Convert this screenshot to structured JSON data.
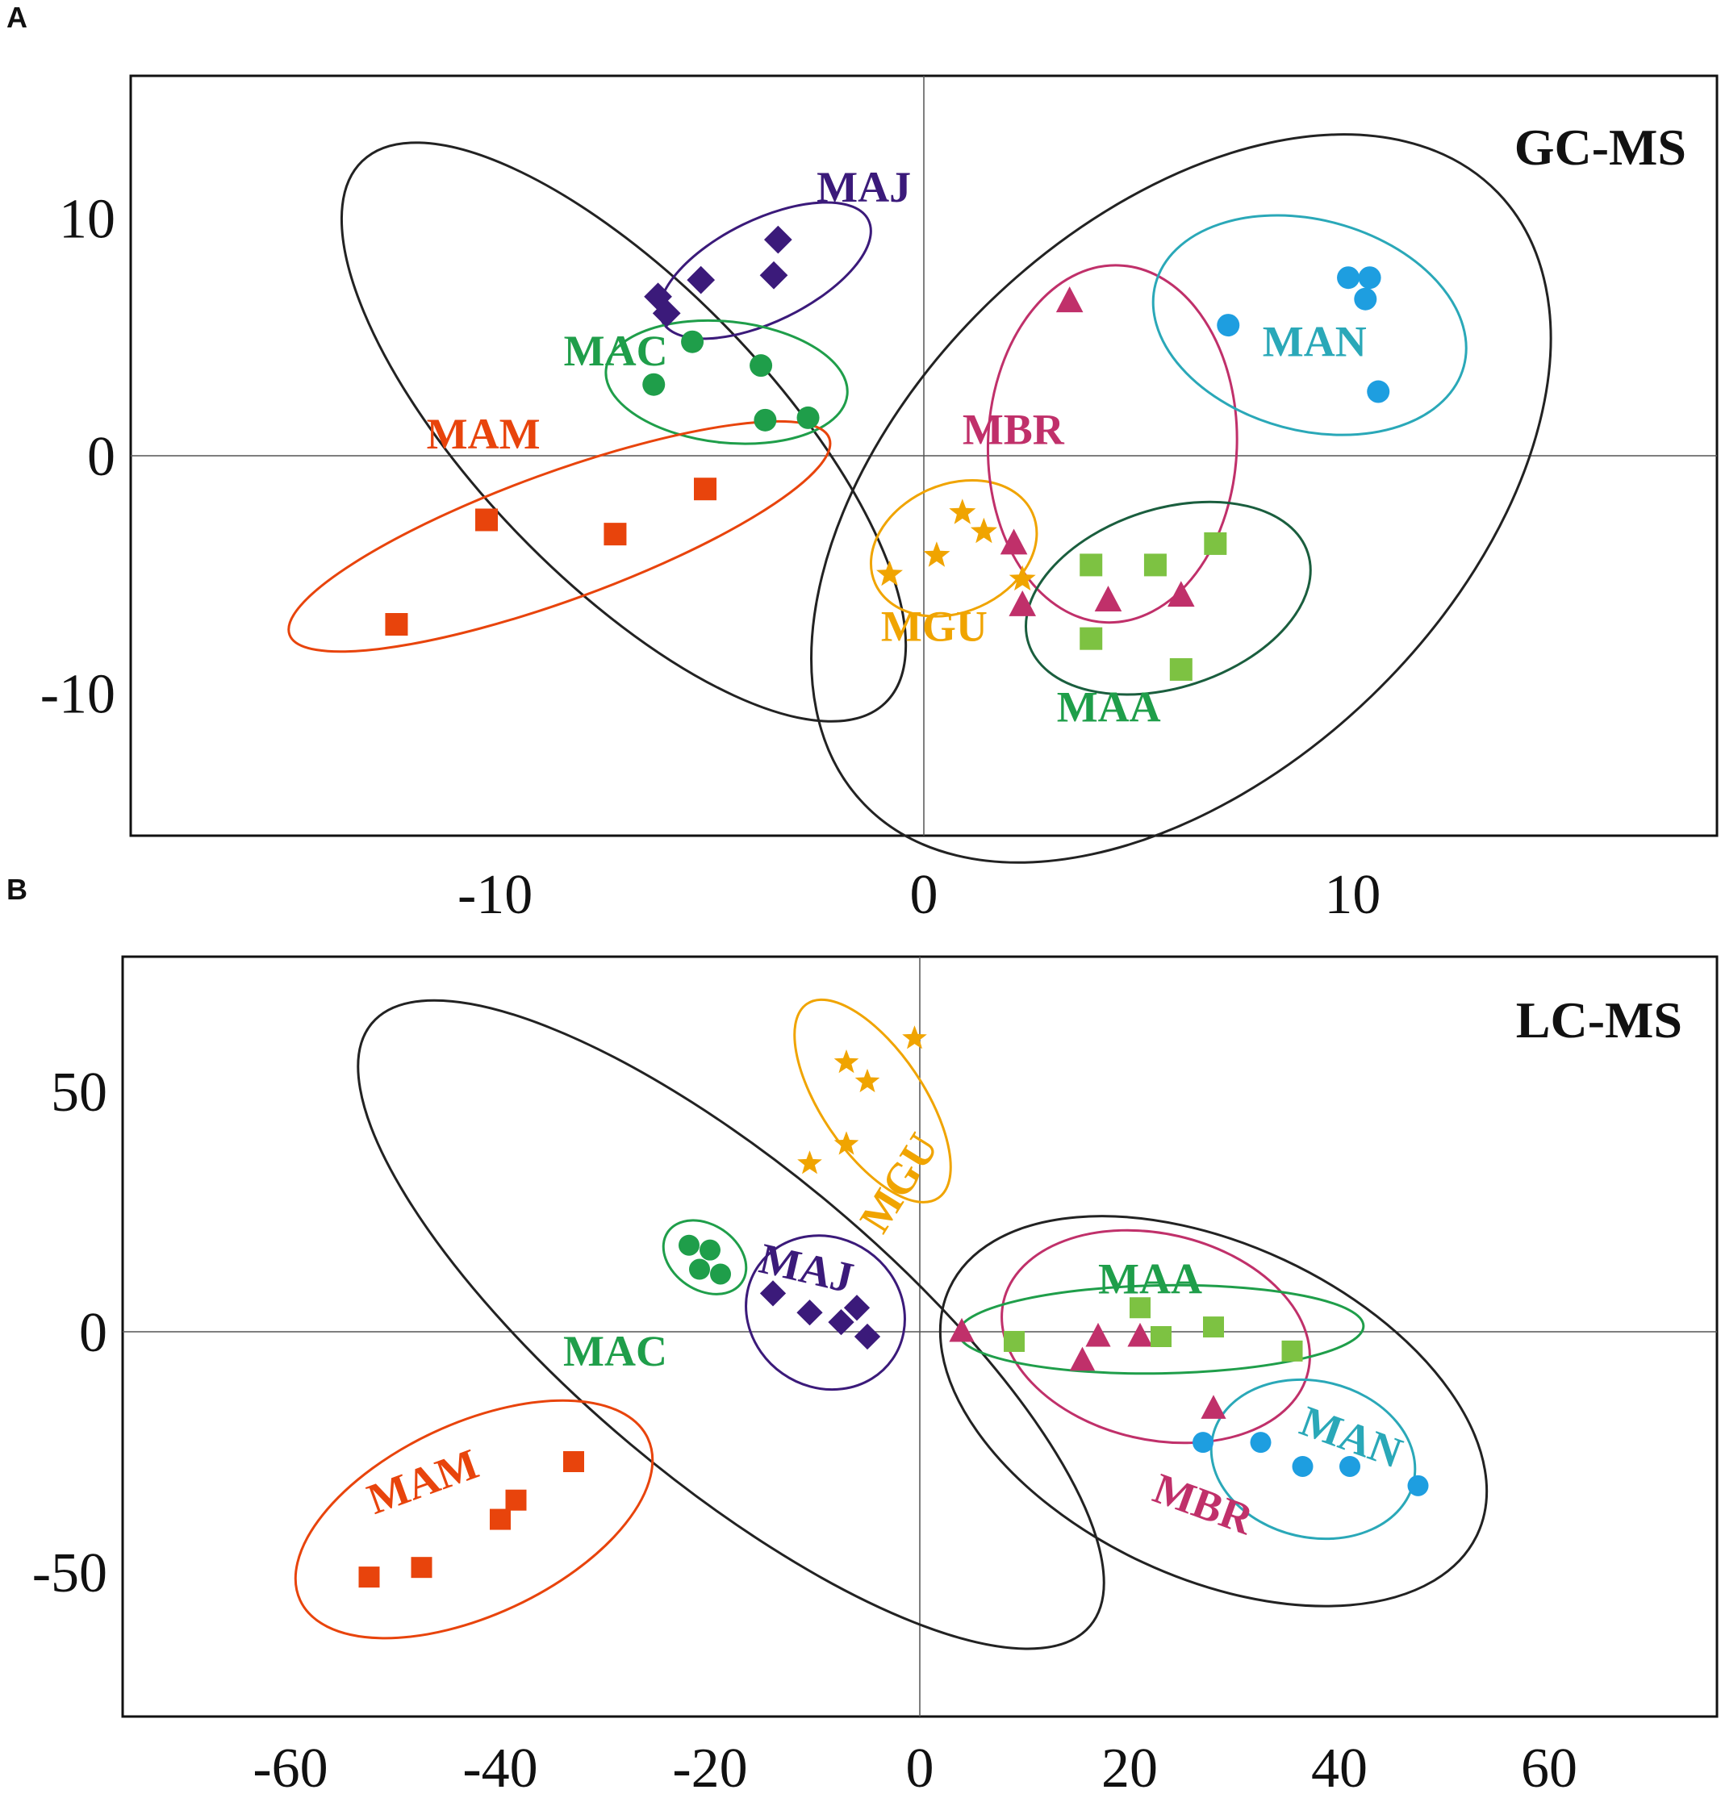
{
  "chart_data": [
    {
      "type": "scatter",
      "panel": "A",
      "title": "GC-MS",
      "xlabel": "",
      "ylabel": "",
      "xlim": [
        -18.5,
        18.5
      ],
      "ylim": [
        -16,
        16
      ],
      "xticks": [
        -10,
        0,
        10
      ],
      "yticks": [
        10,
        0,
        -10
      ],
      "xtick_labels": [
        "-10",
        "0",
        "10"
      ],
      "ytick_labels": [
        "10",
        "0",
        "-10"
      ],
      "series": [
        {
          "name": "MAJ",
          "color": "#3b1a7a",
          "marker": "diamond",
          "x": [
            -6.2,
            -5.2,
            -3.5,
            -3.4,
            -6.0
          ],
          "y": [
            6.7,
            7.4,
            7.6,
            9.1,
            6.0
          ]
        },
        {
          "name": "MAC",
          "color": "#1f9e4a",
          "marker": "circle",
          "x": [
            -5.4,
            -3.8,
            -6.3,
            -3.7,
            -2.7
          ],
          "y": [
            4.8,
            3.8,
            3.0,
            1.5,
            1.6
          ]
        },
        {
          "name": "MAM",
          "color": "#e8440c",
          "marker": "square",
          "x": [
            -12.3,
            -10.2,
            -7.2,
            -5.1
          ],
          "y": [
            -7.1,
            -2.7,
            -3.3,
            -1.4
          ]
        },
        {
          "name": "MGU",
          "color": "#f0a400",
          "marker": "star",
          "x": [
            -0.8,
            0.3,
            0.9,
            1.4,
            2.3
          ],
          "y": [
            -5.0,
            -4.2,
            -2.4,
            -3.2,
            -5.2
          ]
        },
        {
          "name": "MBR",
          "color": "#c0306a",
          "marker": "triangle",
          "x": [
            3.4,
            2.1,
            2.3,
            4.3,
            6.0
          ],
          "y": [
            6.5,
            -3.7,
            -6.3,
            -6.1,
            -5.9
          ]
        },
        {
          "name": "MAA",
          "color": "#7dc242",
          "marker": "square",
          "x": [
            3.9,
            5.4,
            6.8,
            3.9,
            6.0
          ],
          "y": [
            -4.6,
            -4.6,
            -3.7,
            -7.7,
            -9.0
          ]
        },
        {
          "name": "MAN",
          "color": "#1e9ee0",
          "marker": "circle",
          "x": [
            7.1,
            9.9,
            10.4,
            10.3,
            10.6
          ],
          "y": [
            5.5,
            7.5,
            7.5,
            6.6,
            2.7
          ]
        }
      ],
      "annotations": [
        "MAJ",
        "MAC",
        "MAM",
        "MGU",
        "MBR",
        "MAA",
        "MAN"
      ]
    },
    {
      "type": "scatter",
      "panel": "B",
      "title": "LC-MS",
      "xlabel": "",
      "ylabel": "",
      "xlim": [
        -76,
        76
      ],
      "ylim": [
        -80,
        78
      ],
      "xticks": [
        -60,
        -40,
        -20,
        0,
        20,
        40,
        60
      ],
      "yticks": [
        50,
        0,
        -50
      ],
      "xtick_labels": [
        "-60",
        "-40",
        "-20",
        "0",
        "20",
        "40",
        "60"
      ],
      "ytick_labels": [
        "50",
        "0",
        "-50"
      ],
      "series": [
        {
          "name": "MGU",
          "color": "#f0a400",
          "marker": "star",
          "x": [
            -0.5,
            -7.0,
            -5.0,
            -7.0,
            -10.5
          ],
          "y": [
            61.0,
            56.0,
            52.0,
            39.0,
            35.0
          ]
        },
        {
          "name": "MAC",
          "color": "#1f9e4a",
          "marker": "circle",
          "x": [
            -22.0,
            -20.0,
            -21.0,
            -19.0
          ],
          "y": [
            18.0,
            17.0,
            13.0,
            12.0
          ]
        },
        {
          "name": "MAJ",
          "color": "#3b1a7a",
          "marker": "diamond",
          "x": [
            -14.0,
            -10.5,
            -6.0,
            -7.5,
            -5.0
          ],
          "y": [
            8.0,
            4.0,
            5.0,
            2.0,
            -1.0
          ]
        },
        {
          "name": "MAM",
          "color": "#e8440c",
          "marker": "square",
          "x": [
            -33.0,
            -38.5,
            -40.0,
            -47.5,
            -52.5
          ],
          "y": [
            -27.0,
            -35.0,
            -39.0,
            -49.0,
            -51.0
          ]
        },
        {
          "name": "MBR",
          "color": "#c0306a",
          "marker": "triangle",
          "x": [
            4.0,
            15.5,
            17.0,
            21.0,
            28.0
          ],
          "y": [
            0.0,
            -6.0,
            -1.0,
            -1.0,
            -16.0
          ]
        },
        {
          "name": "MAA",
          "color": "#7dc242",
          "marker": "square",
          "x": [
            9.0,
            21.0,
            23.0,
            28.0,
            35.5
          ],
          "y": [
            -2.0,
            5.0,
            -1.0,
            1.0,
            -4.0
          ]
        },
        {
          "name": "MAN",
          "color": "#1e9ee0",
          "marker": "circle",
          "x": [
            27.0,
            32.5,
            36.5,
            41.0,
            47.5
          ],
          "y": [
            -23.0,
            -23.0,
            -28.0,
            -28.0,
            -32.0
          ]
        }
      ],
      "annotations": [
        "MGU",
        "MAC",
        "MAJ",
        "MAM",
        "MBR",
        "MAA",
        "MAN"
      ]
    }
  ]
}
